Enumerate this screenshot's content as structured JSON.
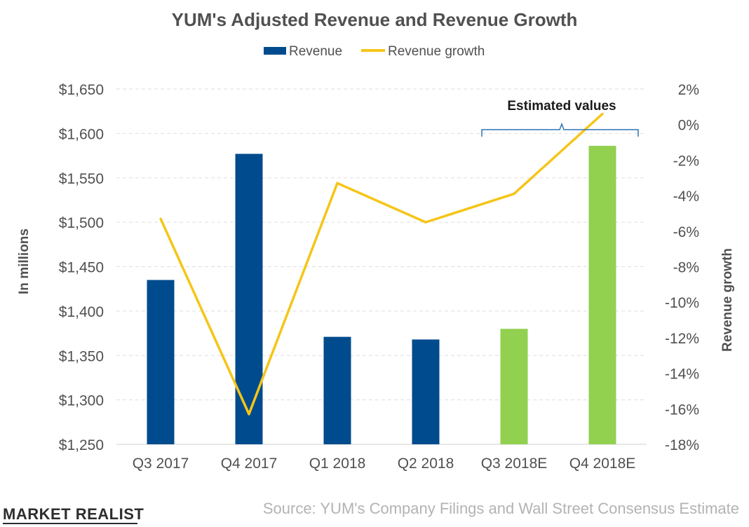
{
  "chart_data": {
    "type": "bar",
    "title": "YUM's Adjusted Revenue and Revenue Growth",
    "categories": [
      "Q3 2017",
      "Q4 2017",
      "Q1 2018",
      "Q2 2018",
      "Q3 2018E",
      "Q4 2018E"
    ],
    "series": [
      {
        "name": "Revenue",
        "type": "bar",
        "axis": "left",
        "values": [
          1435,
          1577,
          1371,
          1368,
          1380,
          1586
        ],
        "colors": [
          "#004b8d",
          "#004b8d",
          "#004b8d",
          "#004b8d",
          "#92d050",
          "#92d050"
        ]
      },
      {
        "name": "Revenue growth",
        "type": "line",
        "axis": "right",
        "unit": "%",
        "values": [
          -5.3,
          -16.3,
          -3.3,
          -5.5,
          -3.9,
          0.6
        ],
        "color": "#f5c518"
      }
    ],
    "ylabel": "In millions",
    "ylim": [
      1250,
      1650
    ],
    "y_ticks": [
      "$1,250",
      "$1,300",
      "$1,350",
      "$1,400",
      "$1,450",
      "$1,500",
      "$1,550",
      "$1,600",
      "$1,650"
    ],
    "y2label": "Revenue growth",
    "y2lim": [
      -18,
      2
    ],
    "y2_ticks": [
      "-18%",
      "-16%",
      "-14%",
      "-12%",
      "-10%",
      "-8%",
      "-6%",
      "-4%",
      "-2%",
      "0%",
      "2%"
    ],
    "grid": true,
    "legend_position": "top-center",
    "annotation": {
      "text": "Estimated values",
      "spans": [
        "Q3 2018E",
        "Q4 2018E"
      ]
    }
  },
  "footer": {
    "source": "Source: YUM's Company Filings and Wall Street Consensus Estimate",
    "brand": "MARKET REALIST"
  }
}
